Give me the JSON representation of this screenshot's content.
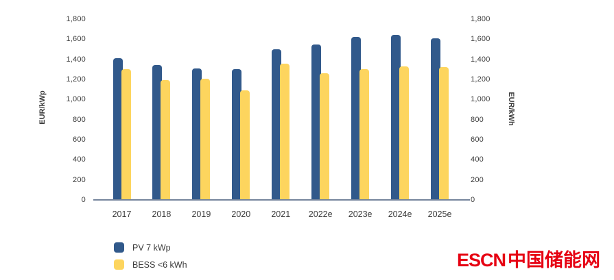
{
  "chart_data": {
    "type": "bar",
    "title": "",
    "categories": [
      "2017",
      "2018",
      "2019",
      "2020",
      "2021",
      "2022e",
      "2023e",
      "2024e",
      "2025e"
    ],
    "series": [
      {
        "name": "PV 7 kWp",
        "color": "#31598b",
        "values": [
          1410,
          1340,
          1310,
          1300,
          1500,
          1550,
          1620,
          1640,
          1610
        ]
      },
      {
        "name": "BESS <6 kWh",
        "color": "#fdd55e",
        "values": [
          1300,
          1190,
          1210,
          1090,
          1360,
          1260,
          1300,
          1330,
          1320
        ]
      }
    ],
    "y_left": {
      "label": "EUR/kWp",
      "min": 0,
      "max": 1800,
      "step": 200,
      "ticks": [
        "0",
        "200",
        "400",
        "600",
        "800",
        "1,000",
        "1,200",
        "1,400",
        "1,600",
        "1,800"
      ]
    },
    "y_right": {
      "label": "EUR/kWh",
      "min": 0,
      "max": 1800,
      "step": 200,
      "ticks": [
        "0",
        "200",
        "400",
        "600",
        "800",
        "1,000",
        "1,200",
        "1,400",
        "1,600",
        "1,800"
      ]
    },
    "grid": false,
    "legend_position": "bottom-left"
  },
  "branding": {
    "logo_text_en": "ESCN",
    "logo_text_zh": "中国储能网",
    "logo_color": "#e60012"
  },
  "colors": {
    "axis_line": "#74849c",
    "text": "#3b3b3b",
    "background": "#ffffff",
    "pv_bar": "#31598b",
    "bess_bar": "#fdd55e"
  }
}
